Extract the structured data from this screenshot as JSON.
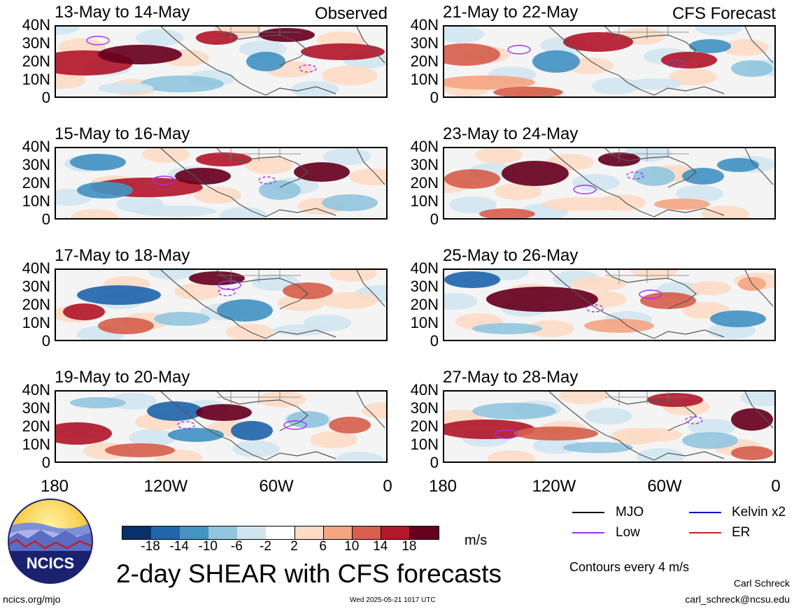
{
  "panels": [
    {
      "title": "13-May to 14-May",
      "note": "Observed"
    },
    {
      "title": "21-May to 22-May",
      "note": "CFS Forecast"
    },
    {
      "title": "15-May to 16-May",
      "note": ""
    },
    {
      "title": "23-May to 24-May",
      "note": ""
    },
    {
      "title": "17-May to 18-May",
      "note": ""
    },
    {
      "title": "25-May to 26-May",
      "note": ""
    },
    {
      "title": "19-May to 20-May",
      "note": ""
    },
    {
      "title": "27-May to 28-May",
      "note": ""
    }
  ],
  "lat_labels": [
    "40N",
    "30N",
    "20N",
    "10N",
    "0"
  ],
  "lon_labels": [
    "180",
    "120W",
    "60W",
    "0"
  ],
  "colorbar": {
    "unit": "m/s",
    "ticks": [
      "-18",
      "-14",
      "-10",
      "-6",
      "-2",
      "2",
      "6",
      "10",
      "14",
      "18"
    ],
    "colors": [
      "#08306b",
      "#2166ac",
      "#4393c3",
      "#92c5de",
      "#d1e5f0",
      "#ffffff",
      "#fddbc7",
      "#f4a582",
      "#d6604d",
      "#b2182b",
      "#67001f"
    ]
  },
  "legend": {
    "items": [
      {
        "label": "MJO",
        "color": "#000000"
      },
      {
        "label": "Kelvin x2",
        "color": "#0000cc"
      },
      {
        "label": "Low",
        "color": "#a030f0"
      },
      {
        "label": "ER",
        "color": "#cc2020"
      }
    ],
    "contours_note": "Contours every 4 m/s"
  },
  "title": "2-day SHEAR with CFS forecasts",
  "logo_text": "NCICS",
  "footer": {
    "left": "ncics.org/mjo",
    "center": "Wed 2025-05-21 1017 UTC",
    "author": "Carl Schreck",
    "email": "carl_schreck@ncsu.edu"
  }
}
